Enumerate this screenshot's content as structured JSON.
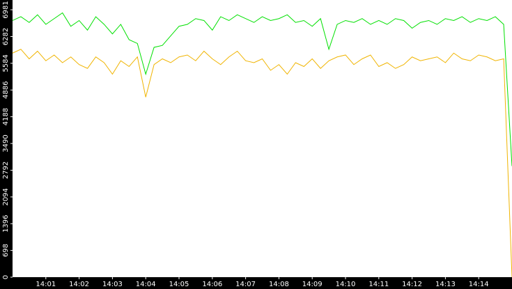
{
  "chart_data": {
    "type": "line",
    "x": [
      0,
      15,
      30,
      45,
      60,
      75,
      90,
      105,
      120,
      135,
      150,
      165,
      180,
      195,
      210,
      225,
      240,
      255,
      270,
      285,
      300,
      315,
      330,
      345,
      360,
      375,
      390,
      405,
      420,
      435,
      450,
      465,
      480,
      495,
      510,
      525,
      540,
      555,
      570,
      585,
      600,
      615,
      630,
      645,
      660,
      675,
      690,
      705,
      720,
      735,
      750,
      765,
      780,
      795,
      810,
      825,
      840,
      855,
      870,
      885,
      900
    ],
    "series": [
      {
        "color": "#00e000",
        "values": [
          6700,
          6800,
          6650,
          6850,
          6600,
          6750,
          6900,
          6550,
          6700,
          6450,
          6800,
          6600,
          6350,
          6600,
          6200,
          6100,
          5300,
          6000,
          6050,
          6300,
          6550,
          6600,
          6750,
          6700,
          6450,
          6800,
          6700,
          6850,
          6750,
          6650,
          6800,
          6700,
          6750,
          6850,
          6650,
          6700,
          6550,
          6750,
          5950,
          6600,
          6700,
          6650,
          6750,
          6600,
          6700,
          6600,
          6750,
          6700,
          6500,
          6650,
          6700,
          6600,
          6750,
          6700,
          6800,
          6650,
          6750,
          6700,
          6800,
          6600,
          2900
        ]
      },
      {
        "color": "#f0b400",
        "values": [
          5850,
          5950,
          5700,
          5900,
          5650,
          5800,
          5600,
          5750,
          5550,
          5450,
          5750,
          5600,
          5300,
          5650,
          5500,
          5750,
          4700,
          5550,
          5700,
          5600,
          5750,
          5800,
          5650,
          5900,
          5700,
          5550,
          5750,
          5900,
          5650,
          5600,
          5700,
          5400,
          5550,
          5300,
          5600,
          5500,
          5700,
          5450,
          5650,
          5750,
          5800,
          5550,
          5700,
          5800,
          5500,
          5600,
          5450,
          5550,
          5750,
          5650,
          5700,
          5750,
          5600,
          5850,
          5700,
          5650,
          5800,
          5750,
          5650,
          5700,
          0
        ]
      }
    ],
    "xlim": [
      0,
      900
    ],
    "xticks": [
      {
        "value": 60,
        "label": "14:01"
      },
      {
        "value": 120,
        "label": "14:02"
      },
      {
        "value": 180,
        "label": "14:03"
      },
      {
        "value": 240,
        "label": "14:04"
      },
      {
        "value": 300,
        "label": "14:05"
      },
      {
        "value": 360,
        "label": "14:06"
      },
      {
        "value": 420,
        "label": "14:07"
      },
      {
        "value": 480,
        "label": "14:08"
      },
      {
        "value": 540,
        "label": "14:09"
      },
      {
        "value": 600,
        "label": "14:10"
      },
      {
        "value": 660,
        "label": "14:11"
      },
      {
        "value": 720,
        "label": "14:12"
      },
      {
        "value": 780,
        "label": "14:13"
      },
      {
        "value": 840,
        "label": "14:14"
      }
    ],
    "ylim": [
      0,
      7236
    ],
    "yticks": [
      0,
      698,
      1396,
      2094,
      2792,
      3490,
      4188,
      4886,
      5584,
      6282,
      6981
    ]
  }
}
